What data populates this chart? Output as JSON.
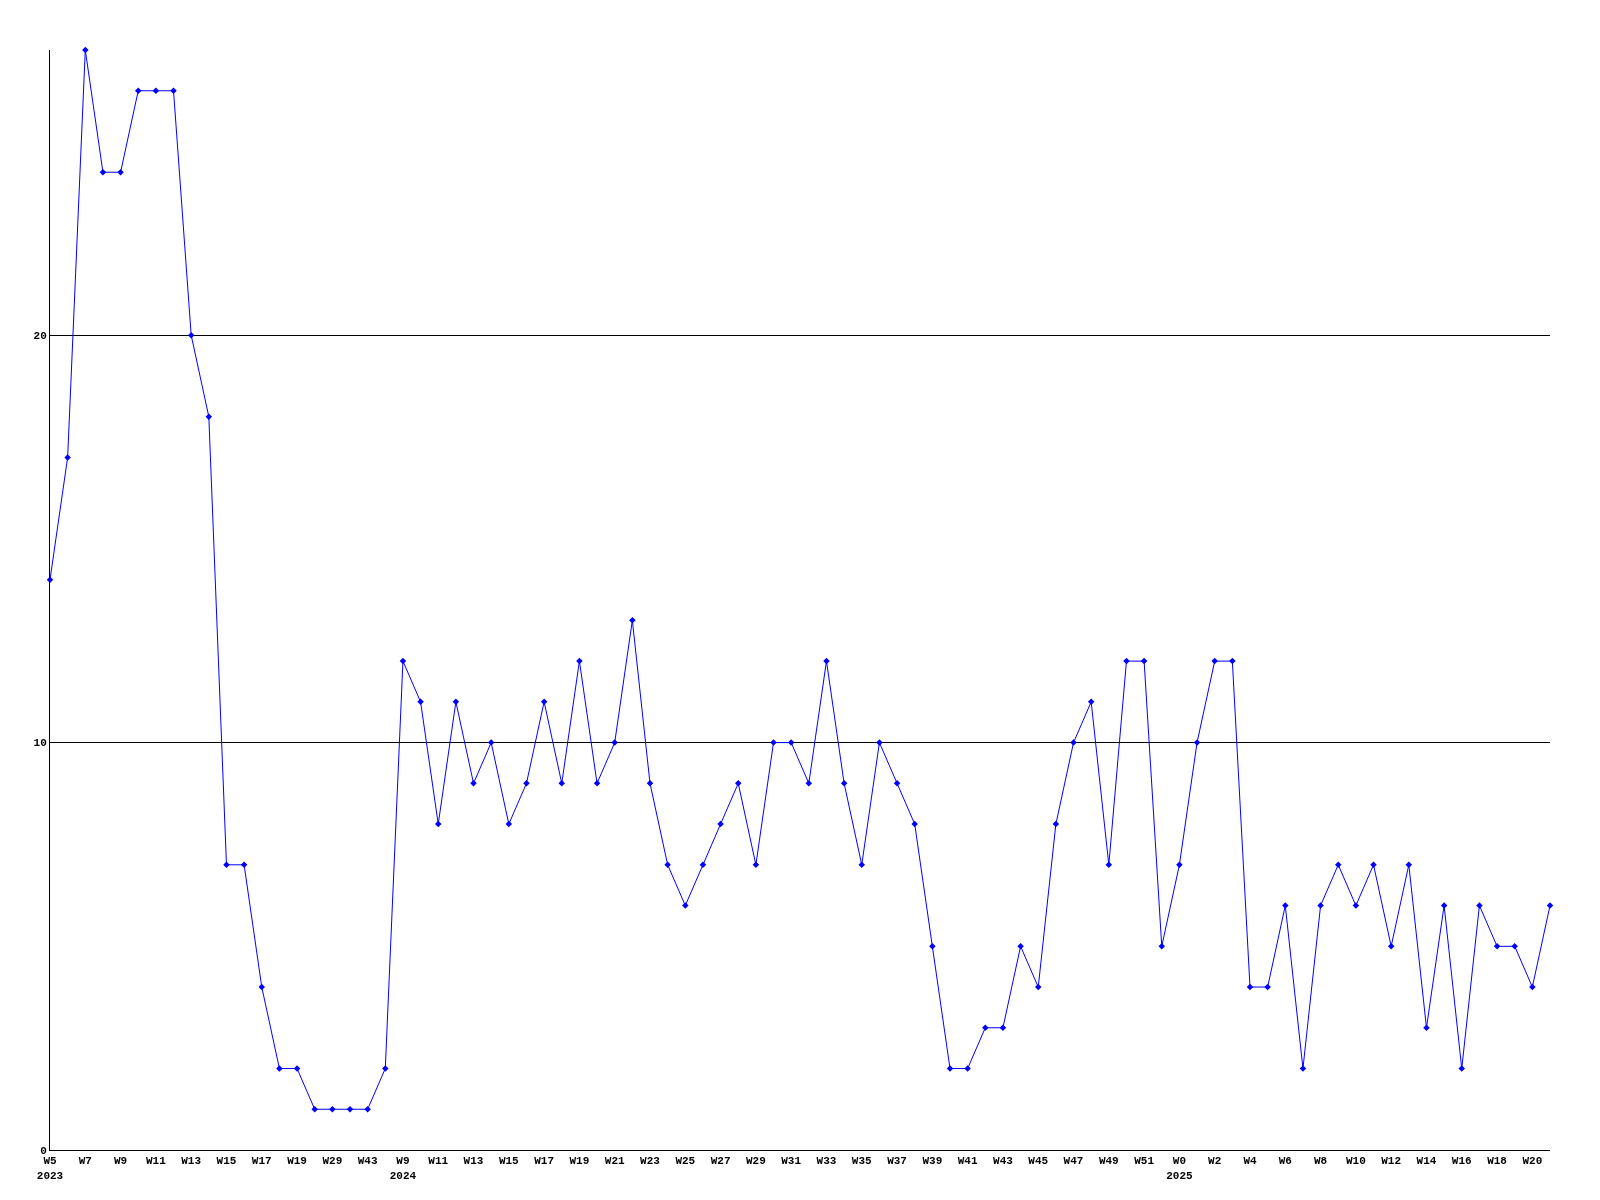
{
  "chart_data": {
    "type": "line",
    "categories": [
      "W5\n2023",
      null,
      "W7",
      null,
      "W9",
      null,
      "W11",
      null,
      "W13",
      null,
      "W15",
      null,
      "W17",
      null,
      "W19",
      null,
      "W29",
      null,
      "W43",
      null,
      "W9\n2024",
      null,
      "W11",
      null,
      "W13",
      null,
      "W15",
      null,
      "W17",
      null,
      "W19",
      null,
      "W21",
      null,
      "W23",
      null,
      "W25",
      null,
      "W27",
      null,
      "W29",
      null,
      "W31",
      null,
      "W33",
      null,
      "W35",
      null,
      "W37",
      null,
      "W39",
      null,
      "W41",
      null,
      "W43",
      null,
      "W45",
      null,
      "W47",
      null,
      "W49",
      null,
      "W51",
      null,
      "W0\n2025",
      null,
      "W2",
      null,
      "W4",
      null,
      "W6",
      null,
      "W8",
      null,
      "W10",
      null,
      "W12",
      null,
      "W14",
      null,
      "W16",
      null,
      "W18",
      null,
      "W20",
      null
    ],
    "series": [
      {
        "color": "#0000ff",
        "values": [
          14,
          17,
          27,
          24,
          24,
          26,
          26,
          26,
          20,
          18,
          7,
          7,
          4,
          2,
          2,
          1,
          1,
          1,
          1,
          2,
          12,
          11,
          8,
          11,
          9,
          10,
          8,
          9,
          11,
          9,
          12,
          9,
          10,
          13,
          9,
          7,
          6,
          7,
          8,
          9,
          7,
          10,
          10,
          9,
          12,
          9,
          7,
          10,
          9,
          8,
          5,
          2,
          2,
          3,
          3,
          5,
          4,
          8,
          10,
          11,
          7,
          12,
          12,
          5,
          7,
          10,
          12,
          12,
          4,
          4,
          6,
          2,
          6,
          7,
          6,
          7,
          5,
          7,
          3,
          6,
          2,
          6,
          5,
          5,
          4,
          6
        ]
      }
    ],
    "ylim": [
      0,
      27
    ],
    "yticks": [
      0,
      10,
      20
    ],
    "grid": "y",
    "marker": "diamond",
    "line_style": "solid",
    "legend": false
  }
}
